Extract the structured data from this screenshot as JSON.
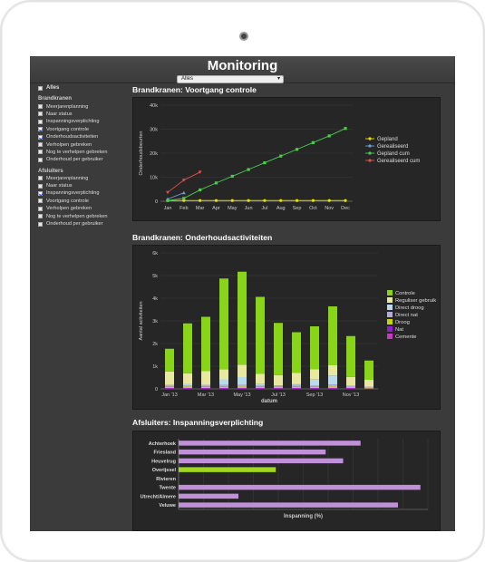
{
  "app": {
    "title": "Monitoring",
    "selector_value": "Alles"
  },
  "sidebar": {
    "all": {
      "label": "Alles",
      "checked": false
    },
    "groups": [
      {
        "heading": "Brandkranen",
        "items": [
          {
            "label": "Meerjarenplanning",
            "checked": false
          },
          {
            "label": "Naar status",
            "checked": false
          },
          {
            "label": "Inspanningsverplichting",
            "checked": false
          },
          {
            "label": "Voortgang controle",
            "checked": true
          },
          {
            "label": "Onderhoudsactiviteiten",
            "checked": true
          },
          {
            "label": "Verholpen gebreken",
            "checked": false
          },
          {
            "label": "Nog te verhelpen gebreken",
            "checked": false
          },
          {
            "label": "Onderhoud per gebruiker",
            "checked": false
          }
        ]
      },
      {
        "heading": "Afsluiters",
        "items": [
          {
            "label": "Meerjarenplanning",
            "checked": false
          },
          {
            "label": "Naar status",
            "checked": false
          },
          {
            "label": "Inspanningsverplichting",
            "checked": true
          },
          {
            "label": "Voortgang controle",
            "checked": false
          },
          {
            "label": "Verholpen gebreken",
            "checked": false
          },
          {
            "label": "Nog te verhelpen gebreken",
            "checked": false
          },
          {
            "label": "Onderhoud per gebruiker",
            "checked": false
          }
        ]
      }
    ]
  },
  "sections": {
    "s1": "Brandkranen: Voortgang controle",
    "s2": "Brandkranen: Onderhoudsactiviteiten",
    "s3": "Afsluiters: Inspanningsverplichting"
  },
  "chart_data": [
    {
      "type": "line",
      "x": [
        "Jan",
        "Feb",
        "Mar",
        "Apr",
        "May",
        "Jun",
        "Jul",
        "Aug",
        "Sep",
        "Oct",
        "Nov",
        "Dec"
      ],
      "ylabel": "Onderhoudsbeurten",
      "xlabel": "",
      "ylim": [
        0,
        40000
      ],
      "yticks": [
        "0",
        "10k",
        "20k",
        "30k",
        "40k"
      ],
      "series": [
        {
          "name": "Gepland",
          "color": "#e8e000",
          "values": [
            300,
            300,
            300,
            300,
            300,
            300,
            300,
            300,
            300,
            300,
            300,
            300
          ]
        },
        {
          "name": "Gerealiseerd",
          "color": "#6aa0d8",
          "values": [
            900,
            3500,
            null,
            null,
            null,
            null,
            null,
            null,
            null,
            null,
            null,
            null
          ]
        },
        {
          "name": "Gepland cum",
          "color": "#4ccc4c",
          "values": [
            300,
            1200,
            4700,
            7600,
            10400,
            13200,
            16000,
            18800,
            21600,
            24400,
            27200,
            30300
          ]
        },
        {
          "name": "Gerealiseerd cum",
          "color": "#e05050",
          "values": [
            3700,
            8800,
            12100,
            null,
            null,
            null,
            null,
            null,
            null,
            null,
            null,
            null
          ]
        }
      ],
      "legend": "right",
      "grid": true
    },
    {
      "type": "bar",
      "stacked": true,
      "categories": [
        "Jan '13",
        "Feb '13",
        "Mar '13",
        "Apr '13",
        "May '13",
        "Jun '13",
        "Jul '13",
        "Aug '13",
        "Sep '13",
        "Oct '13",
        "Nov '13",
        "Dec '13"
      ],
      "x_tick_labels": [
        "Jan '13",
        "Mar '13",
        "May '13",
        "Jul '13",
        "Sep '13",
        "Nov '13"
      ],
      "xlabel": "datum",
      "ylabel": "Aantal activiteiten",
      "ylim": [
        0,
        6000
      ],
      "yticks": [
        "0",
        "1k",
        "2k",
        "3k",
        "4k",
        "5k",
        "6k"
      ],
      "series": [
        {
          "name": "Controle",
          "color": "#88d418",
          "values": [
            1000,
            2200,
            2400,
            4000,
            4100,
            3400,
            2300,
            1800,
            1900,
            2600,
            1800,
            850
          ]
        },
        {
          "name": "Reguliser gebruik",
          "color": "#e8e8a0",
          "values": [
            600,
            450,
            600,
            450,
            550,
            450,
            460,
            460,
            450,
            450,
            400,
            300
          ]
        },
        {
          "name": "Direct droog",
          "color": "#b8dcec",
          "values": [
            0,
            80,
            0,
            250,
            350,
            50,
            0,
            70,
            250,
            400,
            0,
            0
          ]
        },
        {
          "name": "Direct nat",
          "color": "#b8aadc",
          "values": [
            80,
            60,
            90,
            80,
            70,
            70,
            60,
            80,
            70,
            90,
            50,
            40
          ]
        },
        {
          "name": "Droog",
          "color": "#c8d600",
          "values": [
            50,
            60,
            50,
            50,
            60,
            50,
            50,
            50,
            50,
            60,
            40,
            40
          ]
        },
        {
          "name": "Nat",
          "color": "#9020c8",
          "values": [
            20,
            20,
            20,
            20,
            20,
            20,
            20,
            20,
            20,
            20,
            20,
            10
          ]
        },
        {
          "name": "Cemente",
          "color": "#c838c8",
          "values": [
            20,
            20,
            20,
            20,
            20,
            20,
            20,
            20,
            20,
            20,
            20,
            10
          ]
        }
      ],
      "legend": "right"
    },
    {
      "type": "bar",
      "orientation": "horizontal",
      "categories": [
        "Achterhoek",
        "Friesland",
        "Heuvelrug",
        "Overijssel",
        "Rivieren",
        "Twente",
        "Utrecht/Almere",
        "Veluwe"
      ],
      "values": [
        73,
        59,
        66,
        39,
        0,
        97,
        24,
        88
      ],
      "colors": [
        "#c090d8",
        "#c090d8",
        "#c090d8",
        "#a0d820",
        "#c090d8",
        "#c090d8",
        "#c090d8",
        "#c090d8"
      ],
      "xlabel": "Inspanning (%)",
      "ylabel": "",
      "xlim": [
        0,
        100
      ],
      "grid": true
    }
  ]
}
